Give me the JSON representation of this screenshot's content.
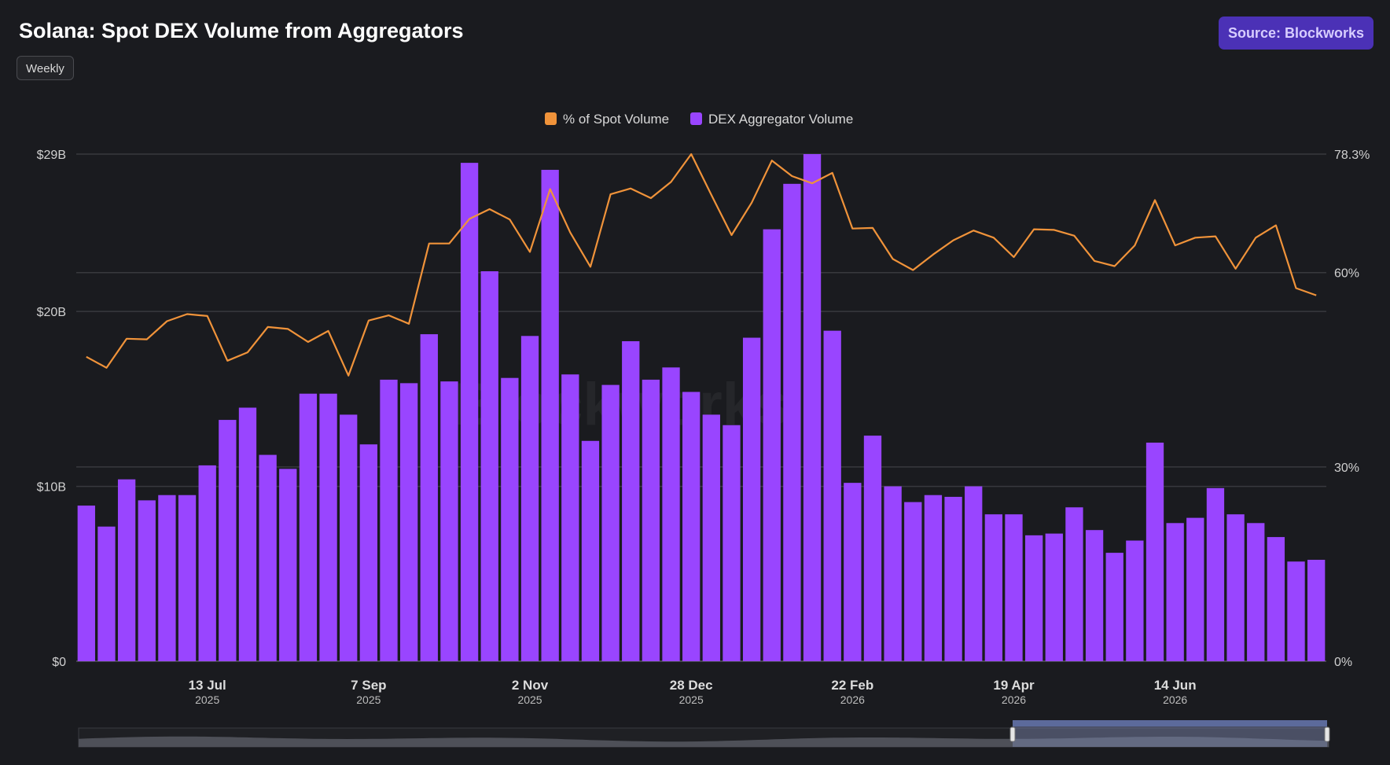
{
  "header": {
    "title": "Solana: Spot DEX Volume from Aggregators",
    "frequency_label": "Weekly",
    "source_label": "Source: Blockworks"
  },
  "watermark": "Blockworks",
  "colors": {
    "background": "#1a1b1f",
    "bar": "#9945ff",
    "line": "#f0933a",
    "grid": "#38393e",
    "axis_text": "#d0d0d0"
  },
  "chart_data": {
    "type": "bar",
    "title": "Solana: Spot DEX Volume from Aggregators",
    "legend_position": "top-center",
    "grid": true,
    "x_tick_labels": [
      {
        "label": "13 Jul",
        "sub": "2025",
        "index": 6
      },
      {
        "label": "7 Sep",
        "sub": "2025",
        "index": 14
      },
      {
        "label": "2 Nov",
        "sub": "2025",
        "index": 22
      },
      {
        "label": "28 Dec",
        "sub": "2025",
        "index": 30
      },
      {
        "label": "22 Feb",
        "sub": "2026",
        "index": 38
      },
      {
        "label": "19 Apr",
        "sub": "2026",
        "index": 46
      },
      {
        "label": "14 Jun",
        "sub": "2026",
        "index": 54
      }
    ],
    "left_axis": {
      "ticks": [
        {
          "value": 0,
          "label": "$0"
        },
        {
          "value": 10,
          "label": "$10B"
        },
        {
          "value": 20,
          "label": "$20B"
        },
        {
          "value": 29,
          "label": "$29B"
        }
      ],
      "ylim": [
        0,
        29
      ],
      "unit": "billion USD"
    },
    "right_axis": {
      "ticks": [
        {
          "value": 0,
          "label": "0%"
        },
        {
          "value": 30,
          "label": "30%"
        },
        {
          "value": 60,
          "label": "60%"
        },
        {
          "value": 78.3,
          "label": "78.3%"
        }
      ],
      "ylim": [
        0,
        78.3
      ]
    },
    "series": [
      {
        "name": "DEX Aggregator Volume",
        "kind": "bar",
        "axis": "left",
        "values": [
          8.9,
          7.7,
          10.4,
          9.2,
          9.5,
          9.5,
          11.2,
          13.8,
          14.5,
          11.8,
          11.0,
          15.3,
          15.3,
          14.1,
          12.4,
          16.1,
          15.9,
          18.7,
          16.0,
          28.5,
          22.3,
          16.2,
          18.6,
          28.1,
          16.4,
          12.6,
          15.8,
          18.3,
          16.1,
          16.8,
          15.4,
          14.1,
          13.5,
          18.5,
          24.7,
          27.3,
          29.0,
          18.9,
          10.2,
          12.9,
          10.0,
          9.1,
          9.5,
          9.4,
          10.0,
          8.4,
          8.4,
          7.2,
          7.3,
          8.8,
          7.5,
          6.2,
          6.9,
          12.5,
          7.9,
          8.2,
          9.9,
          8.4,
          7.9,
          7.1,
          5.7,
          5.8
        ]
      },
      {
        "name": "% of Spot Volume",
        "kind": "line",
        "axis": "right",
        "values": [
          47.0,
          45.3,
          49.8,
          49.7,
          52.5,
          53.6,
          53.3,
          46.4,
          47.7,
          51.6,
          51.3,
          49.3,
          51.0,
          44.1,
          52.6,
          53.4,
          52.1,
          64.5,
          64.5,
          68.3,
          69.8,
          68.2,
          63.2,
          72.9,
          66.2,
          60.9,
          72.1,
          73.0,
          71.5,
          74.0,
          78.3,
          72.0,
          65.8,
          70.8,
          77.3,
          74.9,
          73.8,
          75.4,
          66.8,
          66.9,
          62.1,
          60.4,
          62.8,
          65.0,
          66.5,
          65.4,
          62.4,
          66.7,
          66.6,
          65.7,
          61.8,
          61.0,
          64.2,
          71.2,
          64.2,
          65.4,
          65.6,
          60.6,
          65.4,
          67.3,
          57.6,
          56.5
        ]
      }
    ]
  }
}
